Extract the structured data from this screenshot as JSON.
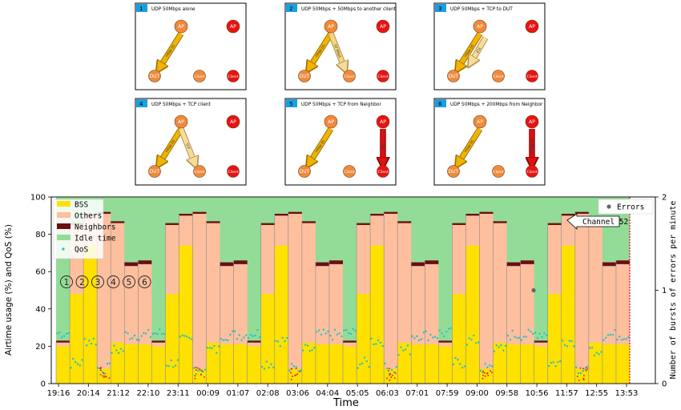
{
  "scenarios": [
    {
      "num": "1",
      "title": "UDP 50Mbps alone",
      "arrows": [
        {
          "label": "50 Mbps",
          "kind": "udp",
          "to": "dut"
        }
      ]
    },
    {
      "num": "2",
      "title": "UDP 50Mbps + 50Mbps to another client",
      "arrows": [
        {
          "label": "50 Mbps",
          "kind": "udp",
          "to": "dut"
        },
        {
          "label": "50 Mbps",
          "kind": "udp2",
          "to": "client"
        }
      ]
    },
    {
      "num": "3",
      "title": "UDP 50Mbps + TCP to DUT",
      "arrows": [
        {
          "label": "50 Mbps",
          "kind": "udp",
          "to": "dut"
        },
        {
          "label": "TCP",
          "kind": "tcp",
          "to": "dut2"
        }
      ]
    },
    {
      "num": "4",
      "title": "UDP 50Mbps + TCP client",
      "arrows": [
        {
          "label": "50 Mbps",
          "kind": "udp",
          "to": "dut"
        },
        {
          "label": "TCP",
          "kind": "tcp",
          "to": "client"
        }
      ]
    },
    {
      "num": "5",
      "title": "UDP 50Mbps + TCP from Neighbor",
      "arrows": [
        {
          "label": "50 Mbps",
          "kind": "udp",
          "to": "dut"
        },
        {
          "label": "TCP",
          "kind": "nbr",
          "to": "nclient"
        }
      ]
    },
    {
      "num": "6",
      "title": "UDP 50Mbps + 200Mbps from Neighbor",
      "arrows": [
        {
          "label": "50 Mbps",
          "kind": "udp",
          "to": "dut"
        },
        {
          "label": "200Mbps",
          "kind": "nbr",
          "to": "nclient"
        }
      ]
    }
  ],
  "node_labels": {
    "ap": "AP",
    "dut": "DUT",
    "client": "Client"
  },
  "chart_data": {
    "type": "area",
    "xlabel": "Time",
    "ylabel": "Airtime usage (%) and QoS (%)",
    "y2label": "Number of bursts of errors per minute",
    "ylim": [
      0,
      100
    ],
    "y2lim": [
      0,
      2
    ],
    "yticks": [
      "0",
      "20",
      "40",
      "60",
      "80",
      "100"
    ],
    "y2ticks": [
      "0",
      "1",
      "2"
    ],
    "xticks": [
      "19:16",
      "20:14",
      "21:12",
      "22:10",
      "23:11",
      "00:09",
      "01:07",
      "02:08",
      "03:06",
      "04:04",
      "05:05",
      "06:03",
      "07:01",
      "07:59",
      "09:00",
      "09:58",
      "10:56",
      "11:57",
      "12:55",
      "13:53"
    ],
    "legend": [
      "BSS",
      "Others",
      "Neighbors",
      "Idle time",
      "QoS"
    ],
    "legend2": [
      "Errors"
    ],
    "colors": {
      "bss": "#ffe100",
      "others": "#fdbf9e",
      "neighbors": "#6b0f12",
      "idle": "#93dc97",
      "qos": "#1fc2c9",
      "errors": "#5b6b64",
      "errmark": "#e0102a"
    },
    "annotation": "Channel 52",
    "scenario_markers": [
      "1",
      "2",
      "3",
      "4",
      "5",
      "6"
    ],
    "error_point": {
      "time": "10:56",
      "bursts": 1
    },
    "cycles": 6,
    "phases": [
      {
        "scenario": "baseline",
        "bss": 20,
        "others": 2,
        "neighbors": 1,
        "qos": 27
      },
      {
        "scenario": "1",
        "bss": 48,
        "others": 37,
        "neighbors": 1,
        "qos": 11
      },
      {
        "scenario": "2",
        "bss": 74,
        "others": 16,
        "neighbors": 1,
        "qos": 23
      },
      {
        "scenario": "3",
        "bss": 8,
        "others": 83,
        "neighbors": 1,
        "qos": 8
      },
      {
        "scenario": "4",
        "bss": 22,
        "others": 64,
        "neighbors": 1,
        "qos": 18
      },
      {
        "scenario": "5",
        "bss": 21,
        "others": 42,
        "neighbors": 2,
        "qos": 26
      },
      {
        "scenario": "6",
        "bss": 21,
        "others": 43,
        "neighbors": 2,
        "qos": 26
      }
    ]
  }
}
